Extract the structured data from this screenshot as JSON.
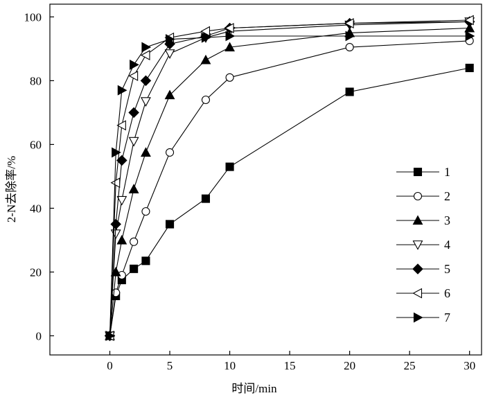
{
  "chart_data": {
    "type": "line",
    "title": "",
    "xlabel": "时间/min",
    "ylabel": "2-N去除率/%",
    "xlim": [
      -5,
      31
    ],
    "ylim": [
      -6,
      104
    ],
    "xticks": [
      0,
      5,
      10,
      15,
      20,
      25,
      30
    ],
    "yticks": [
      0,
      20,
      40,
      60,
      80,
      100
    ],
    "grid": false,
    "legend_position": "right",
    "series": [
      {
        "name": "1",
        "marker": "square-filled",
        "x": [
          0,
          0.5,
          1,
          2,
          3,
          5,
          8,
          10,
          20,
          30
        ],
        "y": [
          0,
          12.5,
          17.5,
          21,
          23.5,
          35,
          43,
          53,
          76.5,
          84
        ]
      },
      {
        "name": "2",
        "marker": "circle-open",
        "x": [
          0,
          0.5,
          1,
          2,
          3,
          5,
          8,
          10,
          20,
          30
        ],
        "y": [
          0,
          13.5,
          19,
          29.5,
          39,
          57.5,
          74,
          81,
          90.5,
          92.5
        ]
      },
      {
        "name": "3",
        "marker": "triangle-up-filled",
        "x": [
          0,
          0.5,
          1,
          2,
          3,
          5,
          8,
          10,
          20,
          30
        ],
        "y": [
          0,
          20,
          30,
          46,
          57.5,
          75.5,
          86.5,
          90.5,
          95,
          96.5
        ]
      },
      {
        "name": "4",
        "marker": "triangle-down-open",
        "x": [
          0,
          0.5,
          1,
          2,
          3,
          5,
          8,
          10,
          20,
          30
        ],
        "y": [
          0,
          32,
          42.5,
          61,
          73.5,
          88.5,
          93.5,
          95.5,
          97.5,
          98.5
        ]
      },
      {
        "name": "5",
        "marker": "diamond-filled",
        "x": [
          0,
          0.5,
          1,
          2,
          3,
          5,
          8,
          10,
          20,
          30
        ],
        "y": [
          0,
          35,
          55,
          70,
          80,
          91.5,
          94,
          96.5,
          98,
          98.5
        ]
      },
      {
        "name": "6",
        "marker": "triangle-left-open",
        "x": [
          0,
          0.5,
          1,
          2,
          3,
          5,
          8,
          10,
          20,
          30
        ],
        "y": [
          0,
          48,
          66,
          81.5,
          88,
          93.5,
          95.5,
          96.5,
          98,
          99
        ]
      },
      {
        "name": "7",
        "marker": "triangle-right-filled",
        "x": [
          0,
          0.5,
          1,
          2,
          3,
          5,
          8,
          10,
          20,
          30
        ],
        "y": [
          0,
          57.5,
          77,
          85,
          90.5,
          93,
          93.5,
          94,
          94,
          94
        ]
      }
    ]
  }
}
